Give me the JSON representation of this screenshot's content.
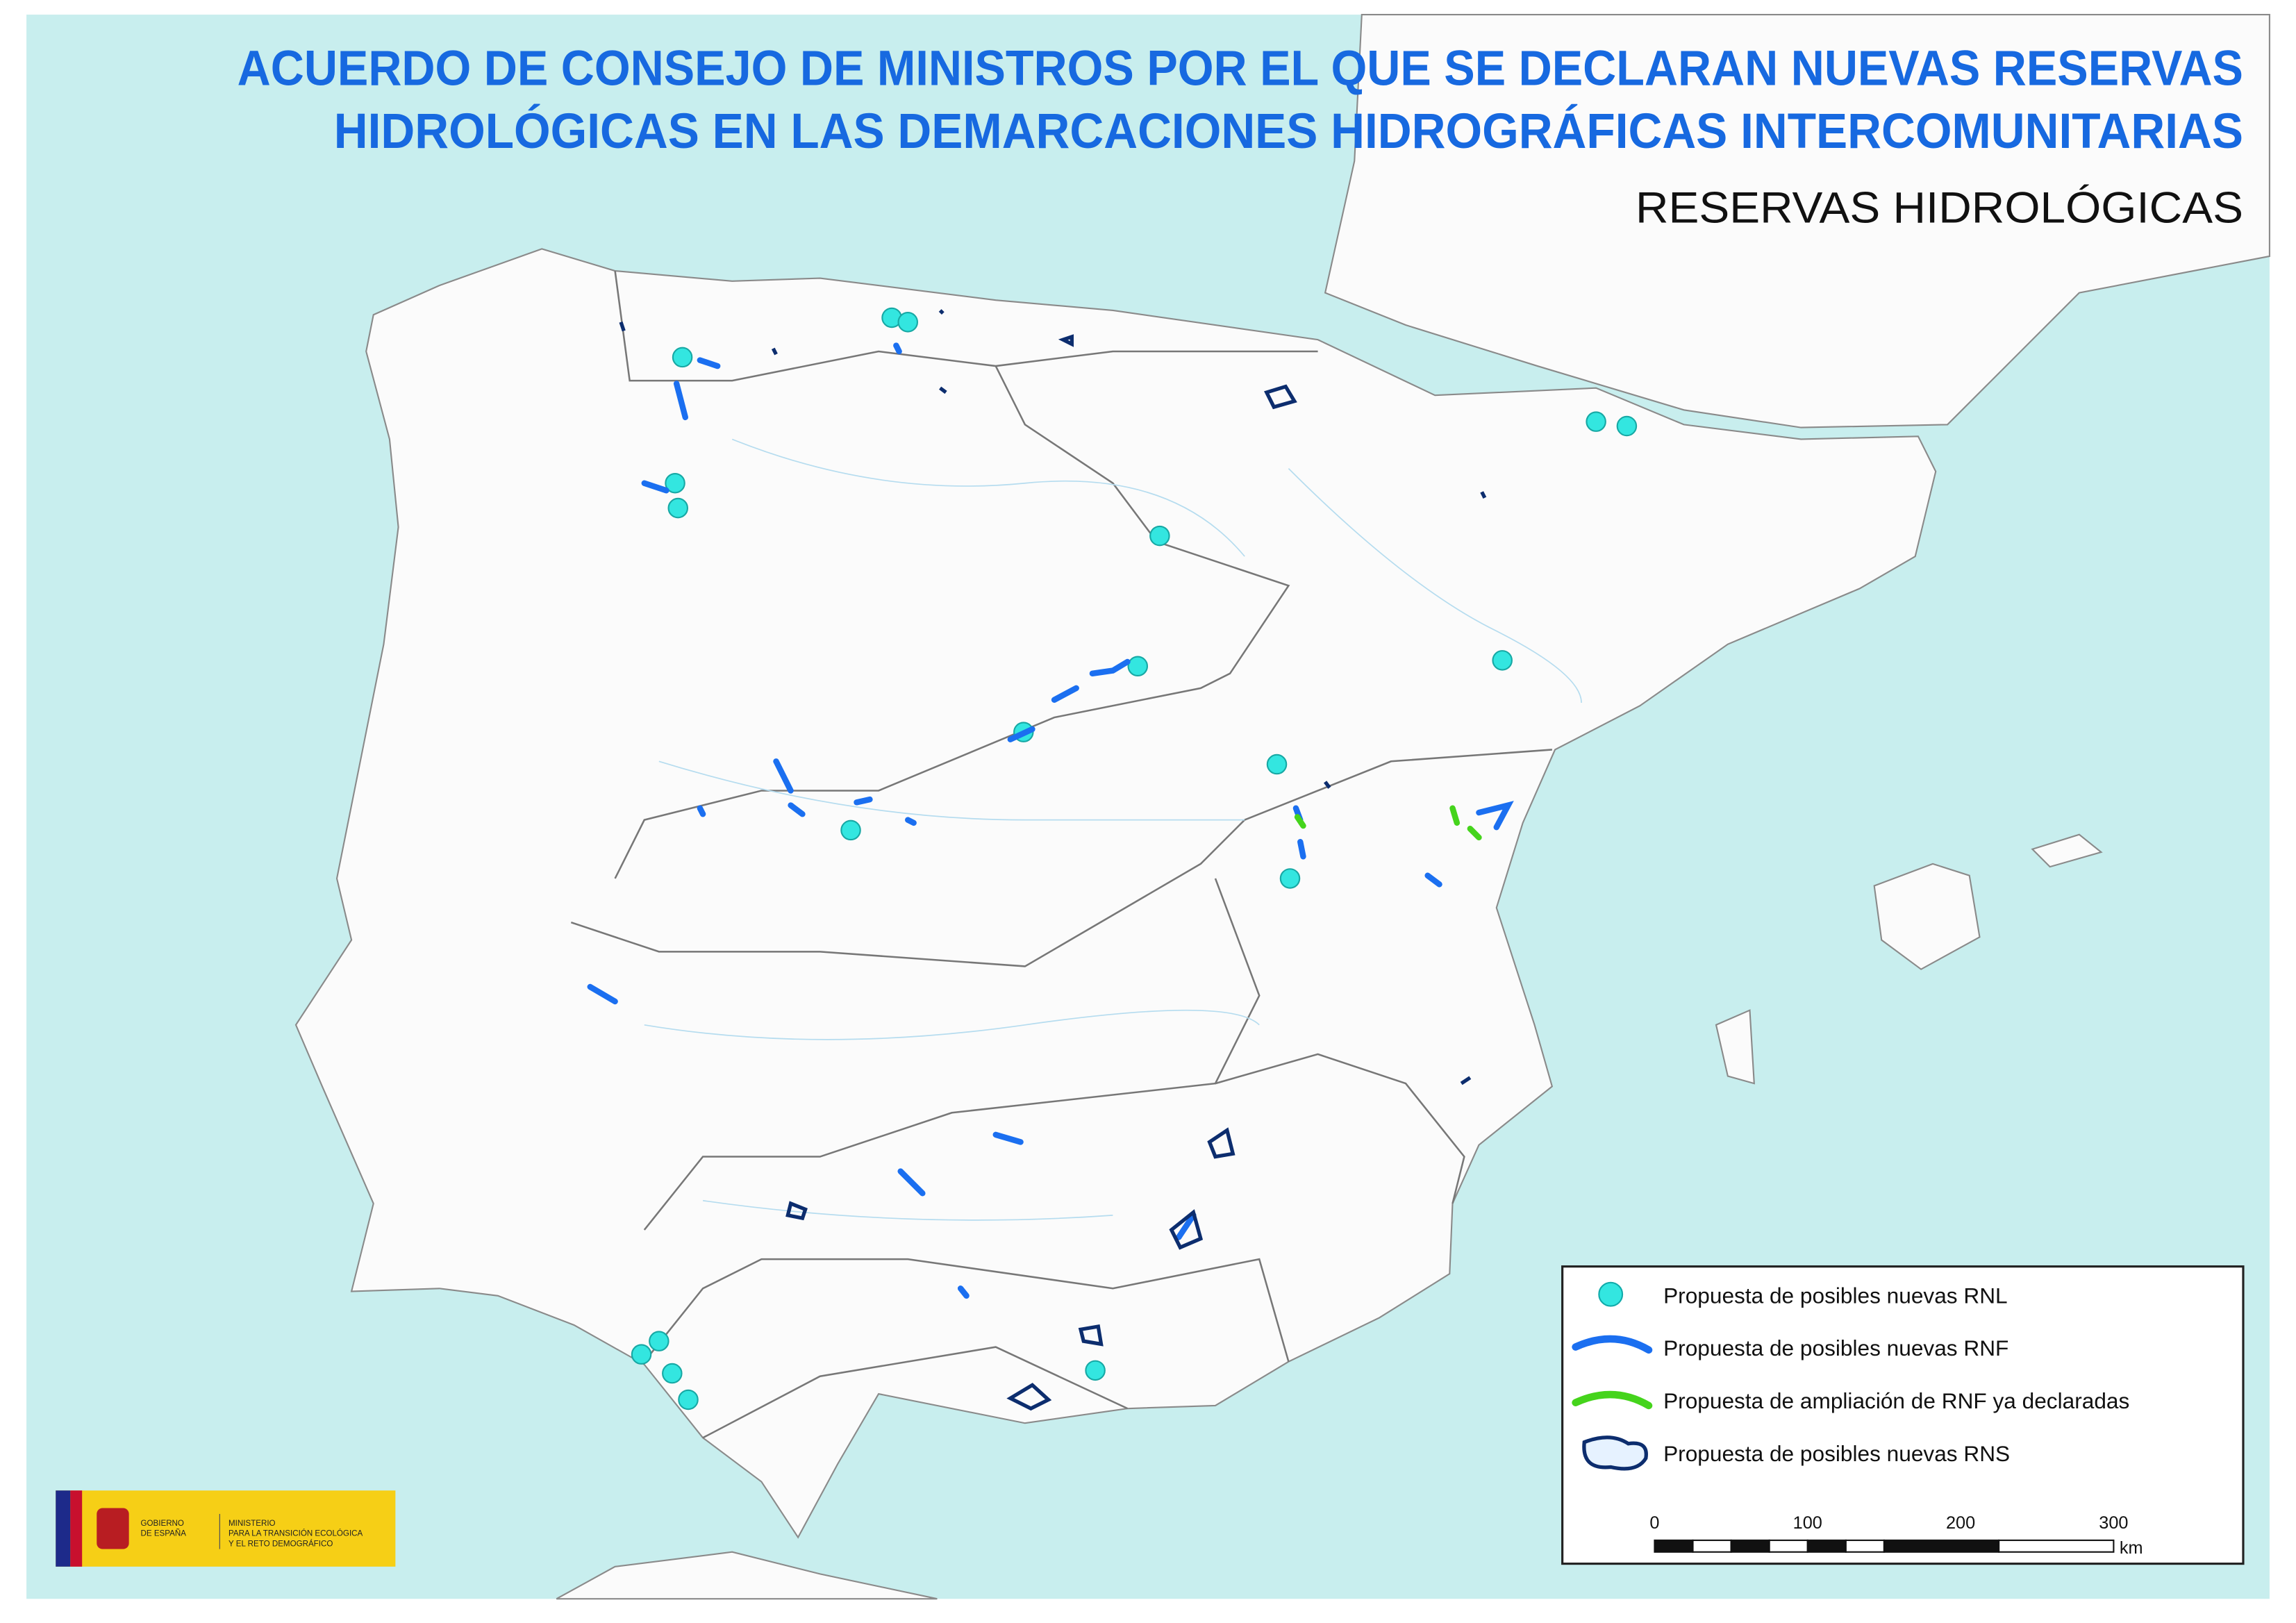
{
  "header": {
    "title_line1": "ACUERDO DE CONSEJO DE MINISTROS POR EL QUE SE DECLARAN NUEVAS RESERVAS",
    "title_line2": "HIDROLÓGICAS EN LAS DEMARCACIONES HIDROGRÁFICAS INTERCOMUNITARIAS",
    "subtitle": "RESERVAS HIDROLÓGICAS"
  },
  "legend": {
    "items": [
      {
        "label": "Propuesta de posibles nuevas RNL"
      },
      {
        "label": "Propuesta de posibles nuevas RNF"
      },
      {
        "label": "Propuesta de ampliación de RNF ya declaradas"
      },
      {
        "label": "Propuesta de posibles nuevas RNS"
      }
    ]
  },
  "scale_bar": {
    "ticks": [
      "0",
      "100",
      "200",
      "300"
    ],
    "unit": "km"
  },
  "logo": {
    "government": [
      "GOBIERNO",
      "DE ESPAÑA"
    ],
    "ministry": [
      "MINISTERIO",
      "PARA LA TRANSICIÓN ECOLÓGICA",
      "Y EL RETO DEMOGRÁFICO"
    ]
  }
}
